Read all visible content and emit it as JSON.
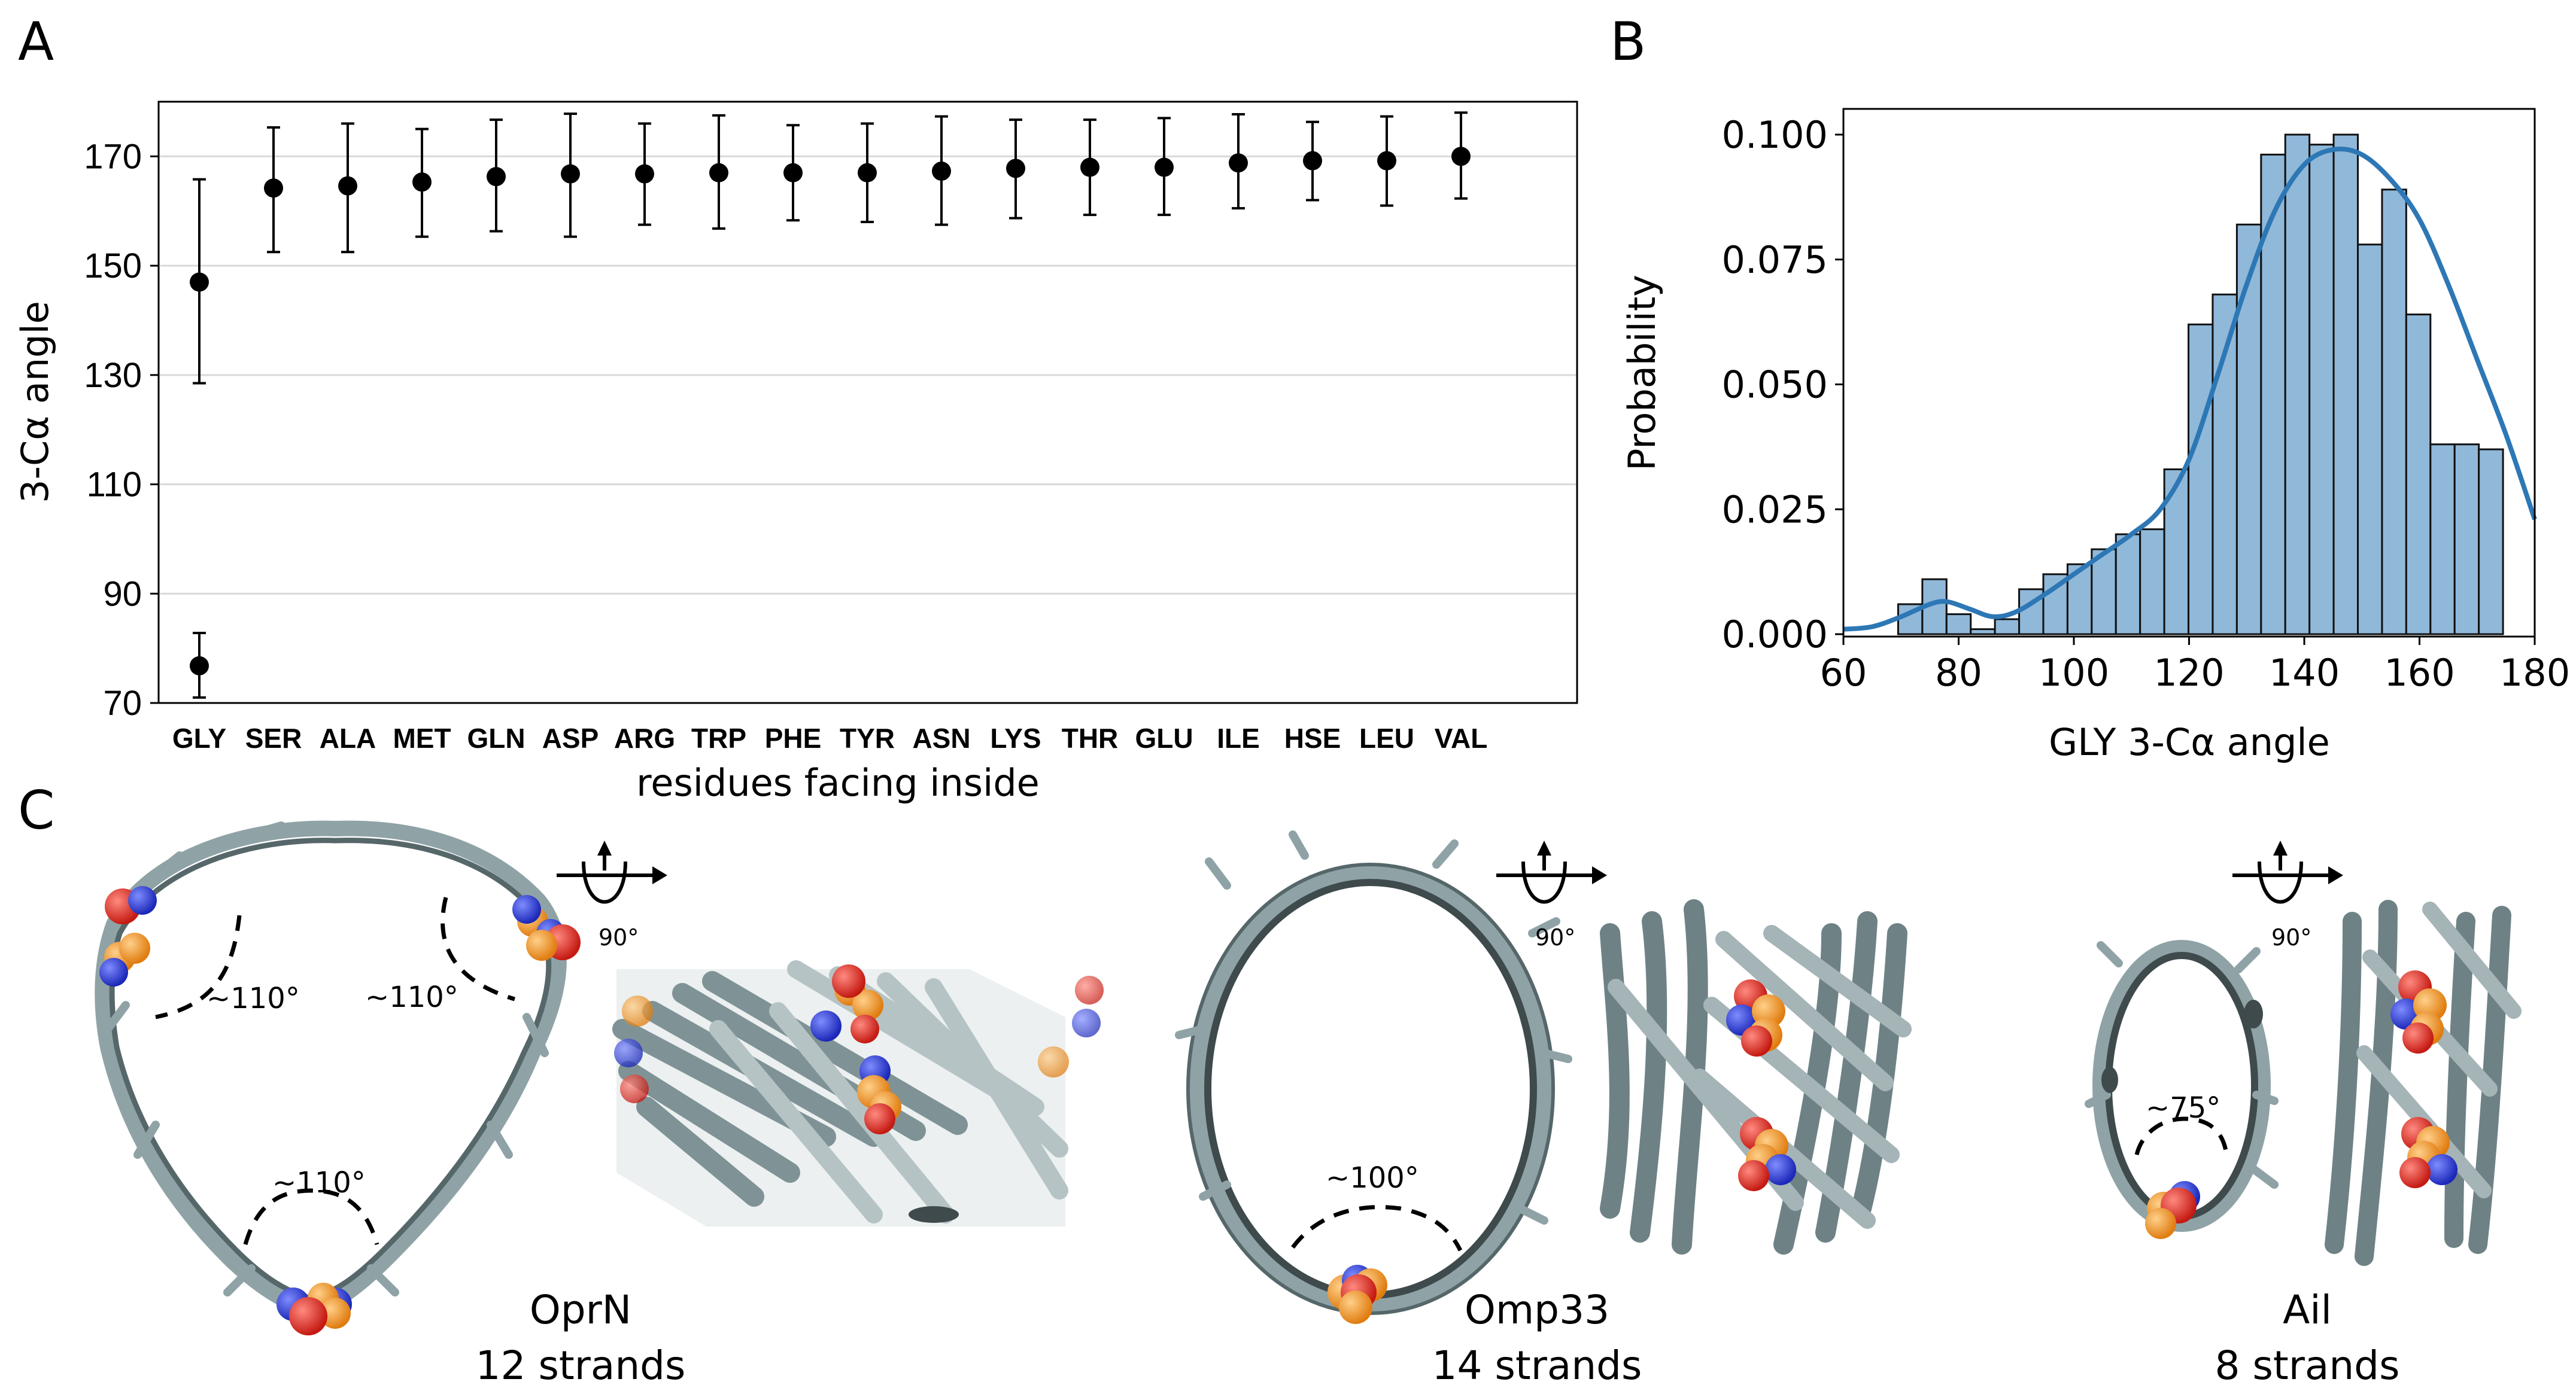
{
  "panels": {
    "a": {
      "letter": "A"
    },
    "b": {
      "letter": "B"
    },
    "c": {
      "letter": "C"
    }
  },
  "chart_data": [
    {
      "type": "scatter",
      "name": "panel-a",
      "title": "",
      "xlabel": "residues facing inside",
      "ylabel": "3-Cα angle",
      "ylim": [
        70,
        180
      ],
      "yticks": [
        70,
        90,
        110,
        130,
        150,
        170
      ],
      "grid": "horizontal",
      "categories": [
        "GLY",
        "SER",
        "ALA",
        "MET",
        "GLN",
        "ASP",
        "ARG",
        "TRP",
        "PHE",
        "TYR",
        "ASN",
        "LYS",
        "THR",
        "GLU",
        "ILE",
        "HSE",
        "LEU",
        "VAL"
      ],
      "points": [
        {
          "category": "GLY",
          "y": 147.0,
          "low": 128.5,
          "high": 165.8
        },
        {
          "category": "GLY",
          "y": 76.8,
          "low": 71.0,
          "high": 82.8
        },
        {
          "category": "SER",
          "y": 164.2,
          "low": 152.5,
          "high": 175.3
        },
        {
          "category": "ALA",
          "y": 164.6,
          "low": 152.5,
          "high": 176.0
        },
        {
          "category": "MET",
          "y": 165.3,
          "low": 155.3,
          "high": 175.0
        },
        {
          "category": "GLN",
          "y": 166.3,
          "low": 156.3,
          "high": 176.7
        },
        {
          "category": "ASP",
          "y": 166.8,
          "low": 155.3,
          "high": 177.8
        },
        {
          "category": "ARG",
          "y": 166.8,
          "low": 157.5,
          "high": 176.0
        },
        {
          "category": "TRP",
          "y": 167.0,
          "low": 156.8,
          "high": 177.5
        },
        {
          "category": "PHE",
          "y": 167.0,
          "low": 158.3,
          "high": 175.7
        },
        {
          "category": "TYR",
          "y": 167.0,
          "low": 158.0,
          "high": 176.0
        },
        {
          "category": "ASN",
          "y": 167.3,
          "low": 157.5,
          "high": 177.3
        },
        {
          "category": "LYS",
          "y": 167.8,
          "low": 158.7,
          "high": 176.7
        },
        {
          "category": "THR",
          "y": 168.0,
          "low": 159.3,
          "high": 176.7
        },
        {
          "category": "GLU",
          "y": 168.0,
          "low": 159.3,
          "high": 177.0
        },
        {
          "category": "ILE",
          "y": 168.8,
          "low": 160.5,
          "high": 177.7
        },
        {
          "category": "HSE",
          "y": 169.2,
          "low": 162.0,
          "high": 176.3
        },
        {
          "category": "LEU",
          "y": 169.2,
          "low": 161.0,
          "high": 177.3
        },
        {
          "category": "VAL",
          "y": 170.0,
          "low": 162.3,
          "high": 178.0
        }
      ]
    },
    {
      "type": "bar",
      "name": "panel-b",
      "title": "",
      "xlabel": "GLY 3-Cα angle",
      "ylabel": "Probability",
      "xlim": [
        60,
        180
      ],
      "ylim": [
        0,
        0.105
      ],
      "xticks": [
        60,
        80,
        100,
        120,
        140,
        160,
        180
      ],
      "yticks": [
        0,
        0.025,
        0.05,
        0.075,
        0.1
      ],
      "ytick_labels": [
        "0.000",
        "0.025",
        "0.050",
        "0.075",
        "0.100"
      ],
      "bin_edges": [
        69.5,
        73.7,
        77.9,
        82.1,
        86.3,
        90.5,
        94.7,
        98.9,
        103.1,
        107.3,
        111.5,
        115.7,
        119.9,
        124.1,
        128.3,
        132.5,
        136.7,
        140.9,
        145.1,
        149.3,
        153.5,
        157.7,
        161.9,
        166.1,
        170.3,
        174.5
      ],
      "values": [
        0.006,
        0.011,
        0.004,
        0.001,
        0.003,
        0.009,
        0.012,
        0.014,
        0.017,
        0.02,
        0.021,
        0.033,
        0.062,
        0.068,
        0.082,
        0.096,
        0.1,
        0.098,
        0.1,
        0.078,
        0.089,
        0.064,
        0.038,
        0.038,
        0.037
      ],
      "kde": {
        "x": [
          60,
          65,
          70,
          75,
          78,
          82,
          86,
          90,
          95,
          100,
          105,
          110,
          115,
          120,
          125,
          130,
          135,
          140,
          145,
          150,
          155,
          160,
          165,
          170,
          175,
          180
        ],
        "y": [
          0.001,
          0.0015,
          0.0035,
          0.006,
          0.0065,
          0.005,
          0.0035,
          0.0045,
          0.008,
          0.012,
          0.016,
          0.02,
          0.025,
          0.035,
          0.052,
          0.07,
          0.085,
          0.094,
          0.097,
          0.096,
          0.091,
          0.083,
          0.07,
          0.055,
          0.04,
          0.023
        ]
      }
    }
  ],
  "structures": [
    {
      "name": "OprN",
      "strands": "12 strands",
      "angles": [
        "~110°",
        "~110°",
        "~110°"
      ],
      "rotation": "90°"
    },
    {
      "name": "Omp33",
      "strands": "14 strands",
      "angles": [
        "~100°"
      ],
      "rotation": "90°"
    },
    {
      "name": "Ail",
      "strands": "8 strands",
      "angles": [
        "~75°"
      ],
      "rotation": "90°"
    }
  ],
  "colors": {
    "marker": "#000000",
    "hist_fill": "#90b8d9",
    "hist_edge": "#111111",
    "kde_line": "#2d77b5",
    "grid": "#d9d9d9",
    "ribbon_light": "#9db0b2",
    "ribbon_dark": "#56676a",
    "atom_orange": "#f39b2b",
    "atom_red": "#e8231e",
    "atom_blue": "#2b3ad6"
  }
}
